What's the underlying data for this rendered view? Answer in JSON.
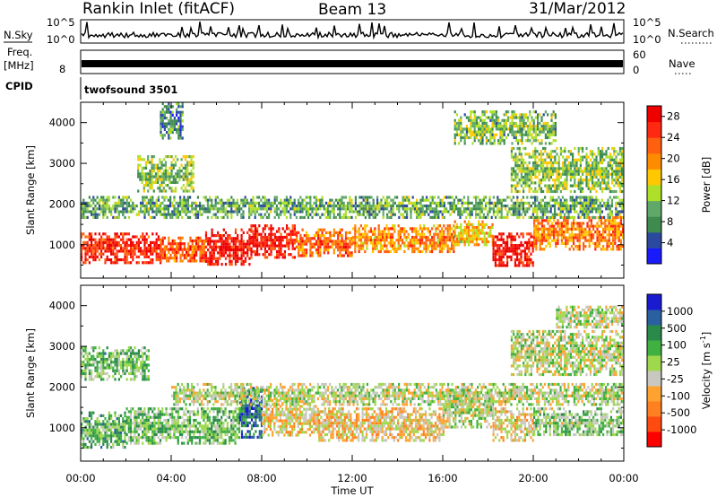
{
  "header": {
    "site": "Rankin Inlet (fitACF)",
    "beam": "Beam 13",
    "date": "31/Mar/2012"
  },
  "strips": {
    "nsky_label": "N.Sky",
    "nsky_ticks": [
      "10^5",
      "10^0"
    ],
    "nsearch_label": "N.Search",
    "nsearch_ticks": [
      "10^5",
      "10^0"
    ],
    "freq_label_1": "Freq.",
    "freq_label_2": "[MHz]",
    "freq_tick": "8",
    "nave_label": "Nave",
    "nave_ticks": [
      "60",
      "0"
    ],
    "cpid_label": "CPID",
    "cpid_value": "twofsound 3501"
  },
  "colors": {
    "power_scale": [
      "#1a1aff",
      "#2b4a9e",
      "#3e8b50",
      "#60a868",
      "#aee02a",
      "#ffc800",
      "#ff8c00",
      "#ff6010",
      "#ff2810",
      "#ee0000"
    ],
    "velocity_scale": [
      "#ff0000",
      "#ff4a10",
      "#ff8020",
      "#ffa230",
      "#c8c8c0",
      "#9ed84c",
      "#40b040",
      "#2a8a4a",
      "#2a60a0",
      "#1a1ad0"
    ]
  },
  "chart_data": [
    {
      "type": "heatmap",
      "panel": "power",
      "xlabel": "Time UT",
      "ylabel": "Slant Range [km]",
      "xlim": [
        0,
        24
      ],
      "ylim": [
        180,
        4500
      ],
      "x_ticks": [
        "00:00",
        "04:00",
        "08:00",
        "12:00",
        "16:00",
        "20:00",
        "00:00"
      ],
      "y_ticks": [
        "1000",
        "2000",
        "3000",
        "4000"
      ],
      "colorbar": {
        "label": "Power [dB]",
        "ticks": [
          "4",
          "8",
          "12",
          "16",
          "20",
          "24",
          "28"
        ],
        "range": [
          0,
          30
        ]
      },
      "bands": [
        {
          "t": [
            0,
            3.5
          ],
          "r": [
            550,
            1300
          ],
          "value": 26
        },
        {
          "t": [
            3.5,
            5.5
          ],
          "r": [
            600,
            1200
          ],
          "value": 23
        },
        {
          "t": [
            5.5,
            7.5
          ],
          "r": [
            500,
            1400
          ],
          "value": 28
        },
        {
          "t": [
            7.5,
            9.5
          ],
          "r": [
            700,
            1500
          ],
          "value": 27
        },
        {
          "t": [
            9.5,
            12.0
          ],
          "r": [
            700,
            1400
          ],
          "value": 22
        },
        {
          "t": [
            12.0,
            16.5
          ],
          "r": [
            800,
            1500
          ],
          "value": 20
        },
        {
          "t": [
            16.5,
            18.2
          ],
          "r": [
            1000,
            1600
          ],
          "value": 17
        },
        {
          "t": [
            18.2,
            20.0
          ],
          "r": [
            500,
            1300
          ],
          "value": 28
        },
        {
          "t": [
            20.0,
            24.0
          ],
          "r": [
            900,
            1700
          ],
          "value": 21
        },
        {
          "t": [
            0,
            24
          ],
          "r": [
            1700,
            2200
          ],
          "value": 10
        },
        {
          "t": [
            2.5,
            5.0
          ],
          "r": [
            2300,
            3200
          ],
          "value": 12
        },
        {
          "t": [
            19.0,
            24.0
          ],
          "r": [
            2300,
            3400
          ],
          "value": 12
        },
        {
          "t": [
            16.5,
            21.0
          ],
          "r": [
            3500,
            4300
          ],
          "value": 11
        },
        {
          "t": [
            3.5,
            4.5
          ],
          "r": [
            3600,
            4500
          ],
          "value": 8
        }
      ]
    },
    {
      "type": "heatmap",
      "panel": "velocity",
      "xlabel": "Time UT",
      "ylabel": "Slant Range [km]",
      "xlim": [
        0,
        24
      ],
      "ylim": [
        180,
        4500
      ],
      "x_ticks": [
        "00:00",
        "04:00",
        "08:00",
        "12:00",
        "16:00",
        "20:00",
        "00:00"
      ],
      "y_ticks": [
        "1000",
        "2000",
        "3000",
        "4000"
      ],
      "colorbar": {
        "label": "Velocity [m s^-1]",
        "ticks": [
          "1000",
          "500",
          "100",
          "25",
          "-25",
          "-100",
          "-500",
          "-1000"
        ],
        "range": [
          -1200,
          1200
        ]
      },
      "bands": [
        {
          "t": [
            0,
            2.0
          ],
          "r": [
            500,
            1400
          ],
          "value": 350
        },
        {
          "t": [
            2.0,
            7.0
          ],
          "r": [
            600,
            1500
          ],
          "value": 250
        },
        {
          "t": [
            7.0,
            8.0
          ],
          "r": [
            800,
            2000
          ],
          "value": 800
        },
        {
          "t": [
            8.0,
            10.5
          ],
          "r": [
            800,
            1700
          ],
          "value": -200
        },
        {
          "t": [
            10.5,
            16.0
          ],
          "r": [
            700,
            1500
          ],
          "value": -250
        },
        {
          "t": [
            16.0,
            18.2
          ],
          "r": [
            1000,
            1900
          ],
          "value": 60
        },
        {
          "t": [
            18.2,
            20.0
          ],
          "r": [
            700,
            1500
          ],
          "value": -180
        },
        {
          "t": [
            20.0,
            24.0
          ],
          "r": [
            800,
            1500
          ],
          "value": 150
        },
        {
          "t": [
            4.0,
            24.0
          ],
          "r": [
            1600,
            2100
          ],
          "value": 0
        },
        {
          "t": [
            0,
            3.0
          ],
          "r": [
            2200,
            3000
          ],
          "value": 300
        },
        {
          "t": [
            19.0,
            24.0
          ],
          "r": [
            2300,
            3400
          ],
          "value": 0
        },
        {
          "t": [
            21.0,
            24.0
          ],
          "r": [
            3500,
            4000
          ],
          "value": 0
        }
      ]
    }
  ]
}
